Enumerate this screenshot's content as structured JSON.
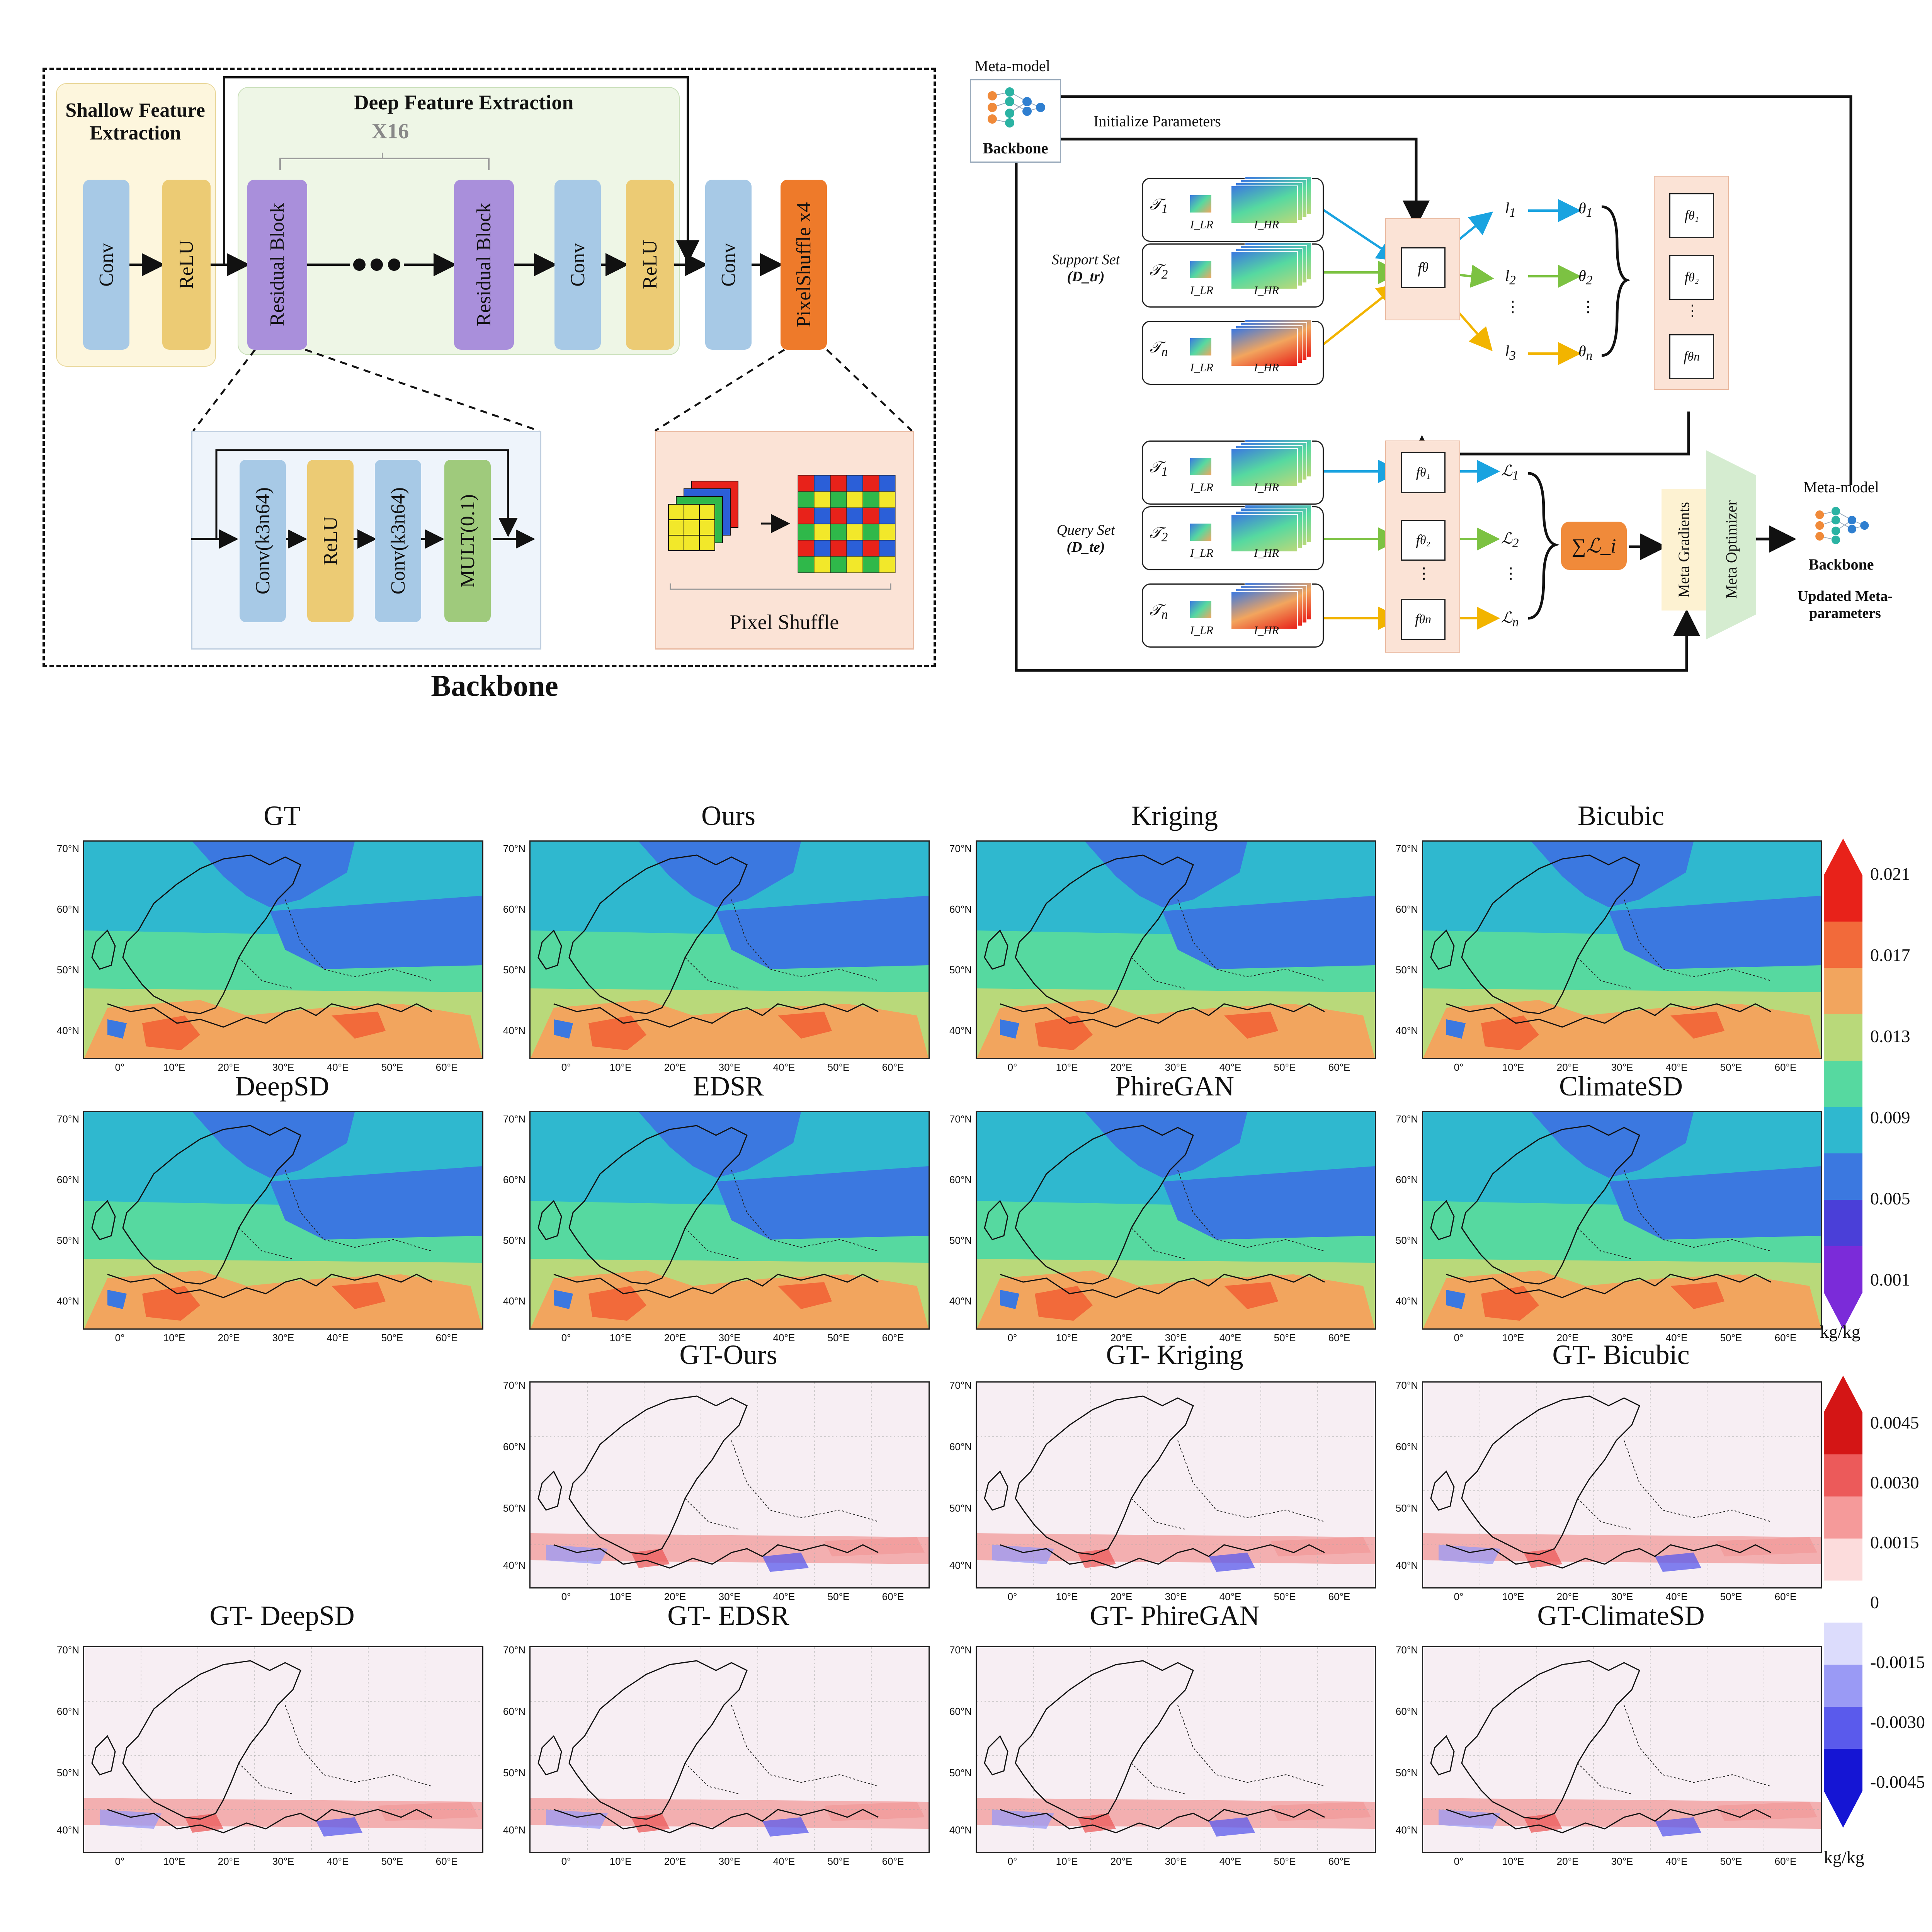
{
  "backbone": {
    "title": "Backbone",
    "shallow_title": "Shallow Feature Extraction",
    "deep_title": "Deep Feature Extraction",
    "repeat": "X16",
    "blocks": [
      "Conv",
      "ReLU",
      "Residual Block",
      "Residual Block",
      "Conv",
      "ReLU",
      "Conv",
      "PixelShuffle x4"
    ],
    "res_detail": [
      "Conv(k3n64)",
      "ReLU",
      "Conv(k3n64)",
      "MULT(0.1)"
    ],
    "pixel_shuffle_label": "Pixel Shuffle"
  },
  "meta": {
    "meta_model_label": "Meta-model",
    "backbone_label": "Backbone",
    "init_label": "Initialize Parameters",
    "support_label": "Support Set",
    "support_sub": "(D_tr)",
    "query_label": "Query Set",
    "query_sub": "(D_te)",
    "task_lr": "I_LR",
    "task_hr": "I_HR",
    "sum_label": "∑ℒ_i",
    "meta_gradients": "Meta Gradients",
    "meta_optimizer": "Meta Optimizer",
    "updated_label": "Updated Meta-parameters",
    "meta_model_label2": "Meta-model",
    "backbone_label2": "Backbone"
  },
  "maps": {
    "row1": [
      "GT",
      "Ours",
      "Kriging",
      "Bicubic"
    ],
    "row2": [
      "DeepSD",
      "EDSR",
      "PhireGAN",
      "ClimateSD"
    ],
    "row3": [
      "GT-Ours",
      "GT- Kriging",
      "GT- Bicubic"
    ],
    "row4": [
      "GT- DeepSD",
      "GT- EDSR",
      "GT- PhireGAN",
      "GT-ClimateSD"
    ],
    "lat_ticks": [
      "70°N",
      "60°N",
      "50°N",
      "40°N"
    ],
    "lon_ticks": [
      "0°",
      "10°E",
      "20°E",
      "30°E",
      "40°E",
      "50°E",
      "60°E"
    ]
  },
  "colorbar1": {
    "ticks": [
      "0.021",
      "0.017",
      "0.013",
      "0.009",
      "0.005",
      "0.001"
    ],
    "unit": "kg/kg",
    "colors": [
      "#e8221a",
      "#f26a3a",
      "#f2a55e",
      "#b9d97a",
      "#56d9a0",
      "#2fb8cf",
      "#3b78e0",
      "#4a3fd8",
      "#7b2bd9"
    ]
  },
  "colorbar2": {
    "ticks": [
      "0.0045",
      "0.0030",
      "0.0015",
      "0",
      "-0.0015",
      "-0.0030",
      "-0.0045"
    ],
    "unit": "kg/kg",
    "colors": [
      "#d41515",
      "#ec5a5a",
      "#f59a9a",
      "#fcdcdc",
      "#ffffff",
      "#dcdcfc",
      "#9a9af5",
      "#5a5aec",
      "#1515d4"
    ]
  }
}
